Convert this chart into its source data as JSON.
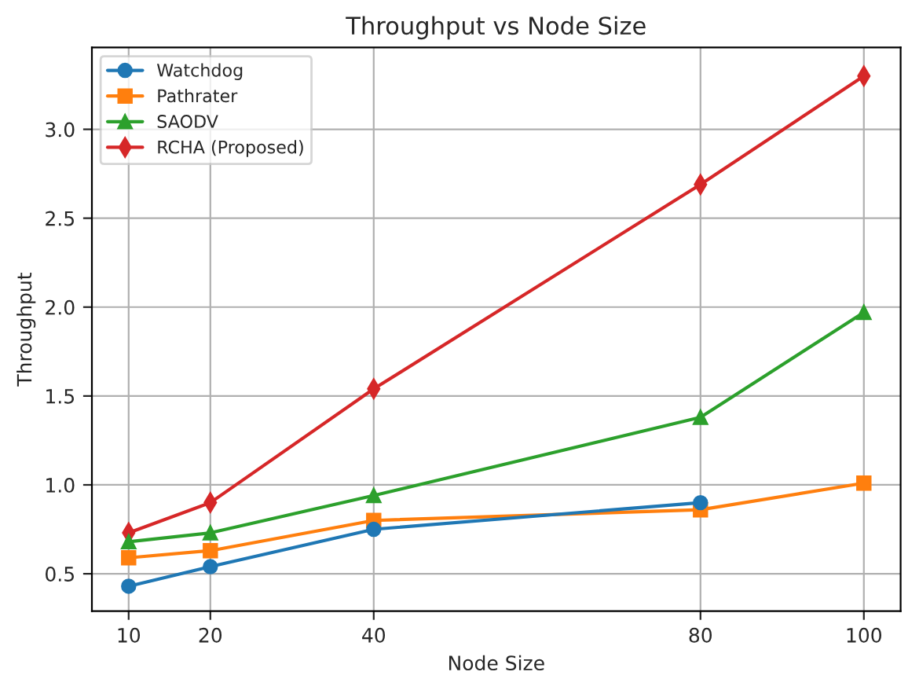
{
  "chart_data": {
    "type": "line",
    "title": "Throughput vs Node Size",
    "xlabel": "Node Size",
    "ylabel": "Throughput",
    "x": [
      10,
      20,
      40,
      80,
      100
    ],
    "series": [
      {
        "name": "Watchdog",
        "color": "#1f77b4",
        "marker": "circle",
        "values": [
          0.43,
          0.54,
          0.75,
          0.9,
          null
        ]
      },
      {
        "name": "Pathrater",
        "color": "#ff7f0e",
        "marker": "square",
        "values": [
          0.59,
          0.63,
          0.8,
          0.86,
          1.01
        ]
      },
      {
        "name": "SAODV",
        "color": "#2ca02c",
        "marker": "triangle",
        "values": [
          0.68,
          0.73,
          0.94,
          1.38,
          1.97
        ]
      },
      {
        "name": "RCHA (Proposed)",
        "color": "#d62728",
        "marker": "diamond",
        "values": [
          0.73,
          0.9,
          1.54,
          2.69,
          3.3
        ]
      }
    ],
    "xlim": [
      5.5,
      104.5
    ],
    "xticks": [
      10,
      20,
      40,
      80,
      100
    ],
    "ylim": [
      0.29,
      3.46
    ],
    "yticks": [
      0.5,
      {
        "value": 1,
        "label": "1.0"
      },
      1.5,
      {
        "value": 2,
        "label": "2.0"
      },
      2.5,
      {
        "value": 3,
        "label": "3.0"
      }
    ],
    "grid": true,
    "legend": "top left"
  }
}
